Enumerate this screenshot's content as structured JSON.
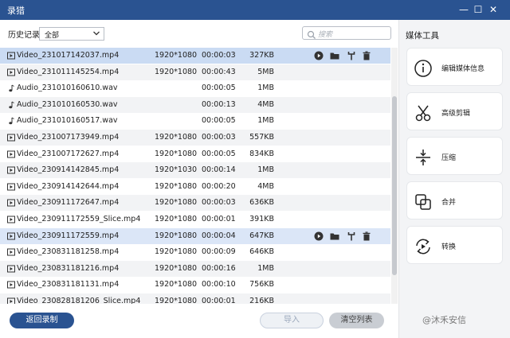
{
  "window": {
    "title": "录猎",
    "minimize": "—",
    "maximize": "☐",
    "close": "✕"
  },
  "filter": {
    "label": "历史记录",
    "selected": "全部",
    "search_placeholder": "搜索"
  },
  "files": [
    {
      "type": "video",
      "name": "Video_231017142037.mp4",
      "res": "1920*1080",
      "dur": "00:00:03",
      "size": "327KB"
    },
    {
      "type": "video",
      "name": "Video_231011145254.mp4",
      "res": "1920*1080",
      "dur": "00:00:43",
      "size": "5MB"
    },
    {
      "type": "audio",
      "name": "Audio_231010160610.wav",
      "res": "",
      "dur": "00:00:05",
      "size": "1MB"
    },
    {
      "type": "audio",
      "name": "Audio_231010160530.wav",
      "res": "",
      "dur": "00:00:13",
      "size": "4MB"
    },
    {
      "type": "audio",
      "name": "Audio_231010160517.wav",
      "res": "",
      "dur": "00:00:05",
      "size": "1MB"
    },
    {
      "type": "video",
      "name": "Video_231007173949.mp4",
      "res": "1920*1080",
      "dur": "00:00:03",
      "size": "557KB"
    },
    {
      "type": "video",
      "name": "Video_231007172627.mp4",
      "res": "1920*1080",
      "dur": "00:00:05",
      "size": "834KB"
    },
    {
      "type": "video",
      "name": "Video_230914142845.mp4",
      "res": "1920*1030",
      "dur": "00:00:14",
      "size": "1MB"
    },
    {
      "type": "video",
      "name": "Video_230914142644.mp4",
      "res": "1920*1080",
      "dur": "00:00:20",
      "size": "4MB"
    },
    {
      "type": "video",
      "name": "Video_230911172647.mp4",
      "res": "1920*1080",
      "dur": "00:00:03",
      "size": "636KB"
    },
    {
      "type": "video",
      "name": "Video_230911172559_Slice.mp4",
      "res": "1920*1080",
      "dur": "00:00:01",
      "size": "391KB"
    },
    {
      "type": "video",
      "name": "Video_230911172559.mp4",
      "res": "1920*1080",
      "dur": "00:00:04",
      "size": "647KB"
    },
    {
      "type": "video",
      "name": "Video_230831181258.mp4",
      "res": "1920*1080",
      "dur": "00:00:09",
      "size": "646KB"
    },
    {
      "type": "video",
      "name": "Video_230831181216.mp4",
      "res": "1920*1080",
      "dur": "00:00:16",
      "size": "1MB"
    },
    {
      "type": "video",
      "name": "Video_230831181131.mp4",
      "res": "1920*1080",
      "dur": "00:00:10",
      "size": "756KB"
    },
    {
      "type": "video",
      "name": "Video_230828181206_Slice.mp4",
      "res": "1920*1080",
      "dur": "00:00:01",
      "size": "216KB"
    }
  ],
  "buttons": {
    "back": "返回录制",
    "import": "导入",
    "clear": "清空列表"
  },
  "panel": {
    "title": "媒体工具",
    "tools": [
      {
        "label": "编辑媒体信息",
        "icon": "info-icon"
      },
      {
        "label": "高级剪辑",
        "icon": "scissors-icon"
      },
      {
        "label": "压缩",
        "icon": "compress-icon"
      },
      {
        "label": "合并",
        "icon": "merge-icon"
      },
      {
        "label": "转换",
        "icon": "convert-icon"
      }
    ]
  },
  "watermark": "@沐禾安信",
  "colors": {
    "accent": "#2a5391",
    "selected_row": "#cadbf3",
    "hover_row": "#dbe6f7"
  }
}
